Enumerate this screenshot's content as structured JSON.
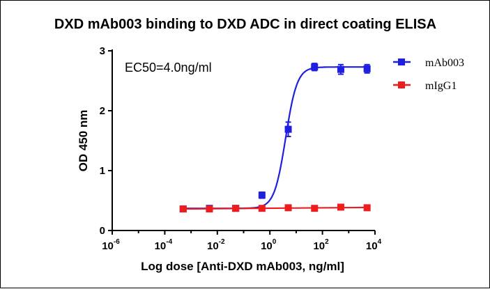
{
  "chart_data": {
    "type": "scatter",
    "title": "DXD mAb003 binding to DXD ADC in direct coating ELISA",
    "xlabel": "Log dose [Anti-DXD mAb003, ng/ml]",
    "ylabel": "OD 450 nm",
    "xscale": "log",
    "xlim": [
      1e-06,
      10000
    ],
    "ylim": [
      0,
      3
    ],
    "x_ticks": [
      {
        "base": "10",
        "exp": "-6",
        "value": 1e-06
      },
      {
        "base": "10",
        "exp": "-4",
        "value": 0.0001
      },
      {
        "base": "10",
        "exp": "-2",
        "value": 0.01
      },
      {
        "base": "10",
        "exp": "0",
        "value": 1
      },
      {
        "base": "10",
        "exp": "2",
        "value": 100
      },
      {
        "base": "10",
        "exp": "4",
        "value": 10000
      }
    ],
    "y_ticks": [
      "0",
      "1",
      "2",
      "3"
    ],
    "annotation": "EC50=4.0ng/ml",
    "legend_position": "top-right",
    "grid": false,
    "series": [
      {
        "name": "mAb003",
        "color": "#1f1fe0",
        "marker": "square",
        "fit": {
          "bottom": 0.37,
          "top": 2.73,
          "ec50": 4.0,
          "hill": 2.0
        },
        "points": [
          {
            "x": 0.0005,
            "y": 0.36,
            "err": 0.02
          },
          {
            "x": 0.005,
            "y": 0.37,
            "err": 0.02
          },
          {
            "x": 0.05,
            "y": 0.37,
            "err": 0.02
          },
          {
            "x": 0.5,
            "y": 0.59,
            "err": 0.05
          },
          {
            "x": 5,
            "y": 1.69,
            "err": 0.12
          },
          {
            "x": 50,
            "y": 2.73,
            "err": 0.06
          },
          {
            "x": 500,
            "y": 2.69,
            "err": 0.08
          },
          {
            "x": 5000,
            "y": 2.7,
            "err": 0.07
          }
        ]
      },
      {
        "name": "mIgG1",
        "color": "#ee1c1c",
        "marker": "square",
        "fit": {
          "linear": true
        },
        "points": [
          {
            "x": 0.0005,
            "y": 0.36,
            "err": 0.01
          },
          {
            "x": 0.005,
            "y": 0.36,
            "err": 0.01
          },
          {
            "x": 0.05,
            "y": 0.37,
            "err": 0.01
          },
          {
            "x": 0.5,
            "y": 0.37,
            "err": 0.01
          },
          {
            "x": 5,
            "y": 0.38,
            "err": 0.01
          },
          {
            "x": 50,
            "y": 0.37,
            "err": 0.01
          },
          {
            "x": 500,
            "y": 0.39,
            "err": 0.01
          },
          {
            "x": 5000,
            "y": 0.38,
            "err": 0.01
          }
        ]
      }
    ]
  }
}
